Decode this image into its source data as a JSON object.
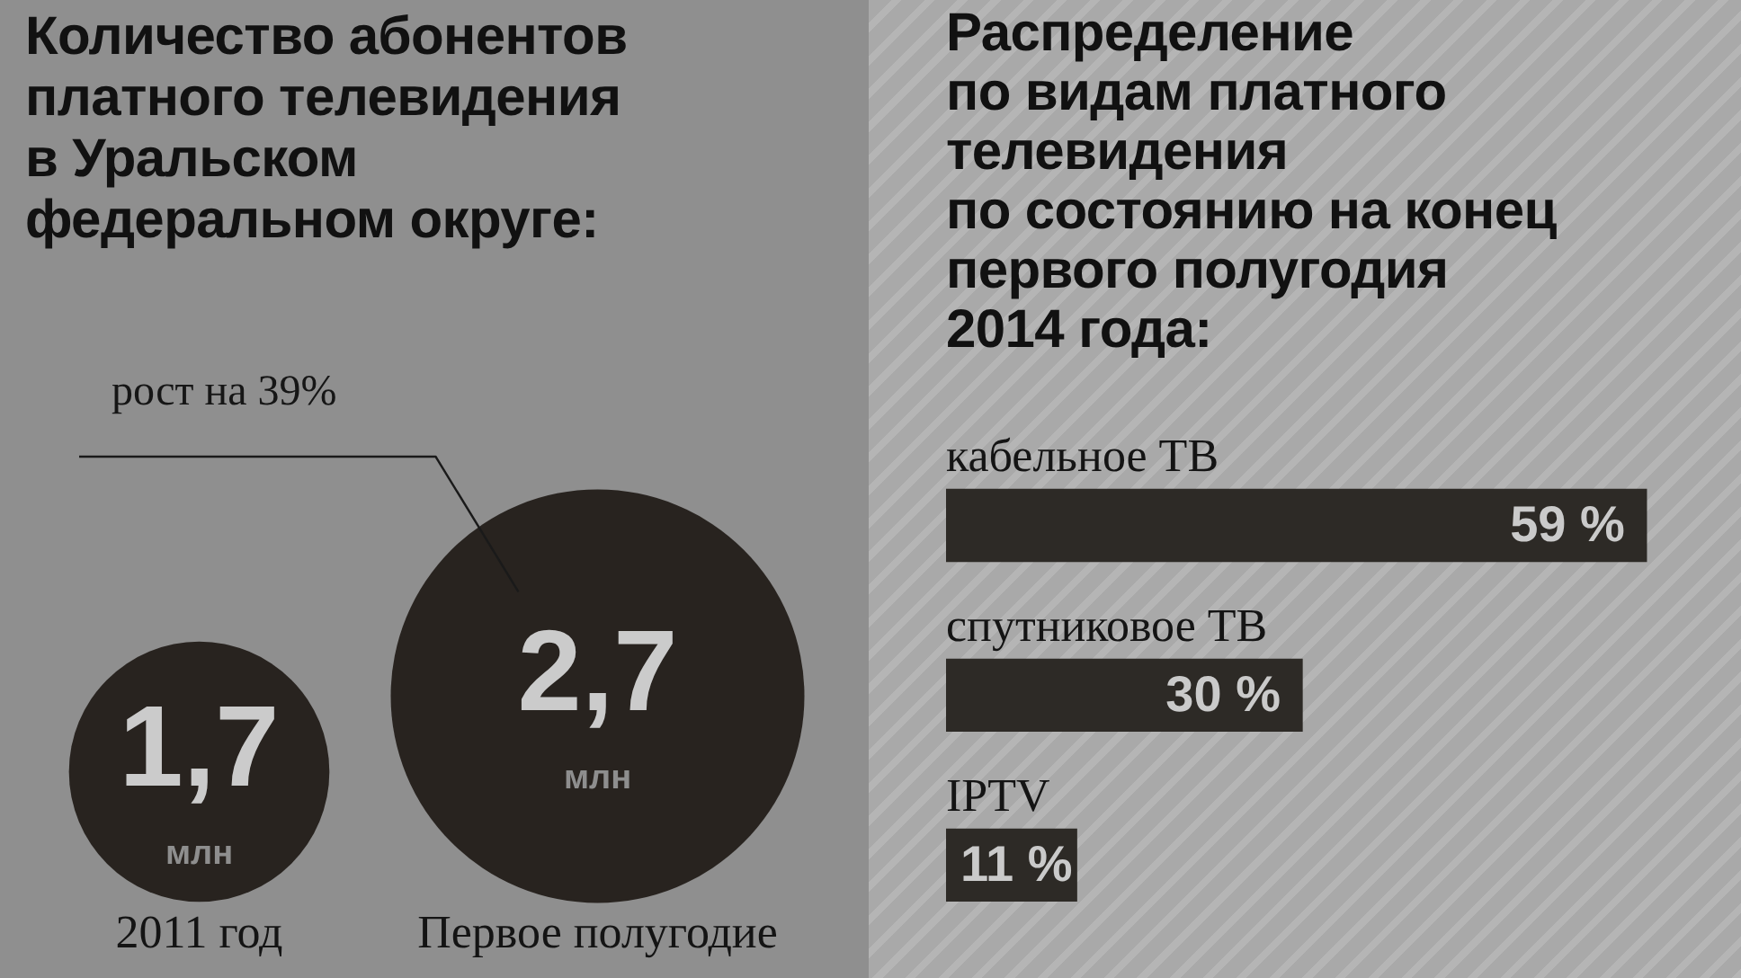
{
  "chart_data": [
    {
      "type": "other",
      "title": "Количество абонентов\nплатного телевидения\nв Уральском\nфедеральном округе:",
      "categories": [
        "2011 год",
        "Первое полугодие"
      ],
      "values": [
        1.7,
        2.7
      ],
      "value_labels": [
        "1,7",
        "2,7"
      ],
      "color": "#28231f",
      "annotations": [
        "рост на 39%",
        {
          "text": "млн",
          "x": "2011 год"
        },
        {
          "text": "млн",
          "x": "Первое полугодие"
        }
      ]
    },
    {
      "type": "bar",
      "orientation": "horizontal",
      "title": "Распределение\nпо видам платного\nтелевидения\nпо состоянию на конец\nпервого полугодия\n2014 года:",
      "categories": [
        "кабельное ТВ",
        "спутниковое ТВ",
        "IPTV"
      ],
      "values": [
        59,
        30,
        11
      ],
      "value_labels": [
        "59 %",
        "30 %",
        "11 %"
      ],
      "color": "#2d2a26",
      "tick_labels": "y"
    }
  ]
}
